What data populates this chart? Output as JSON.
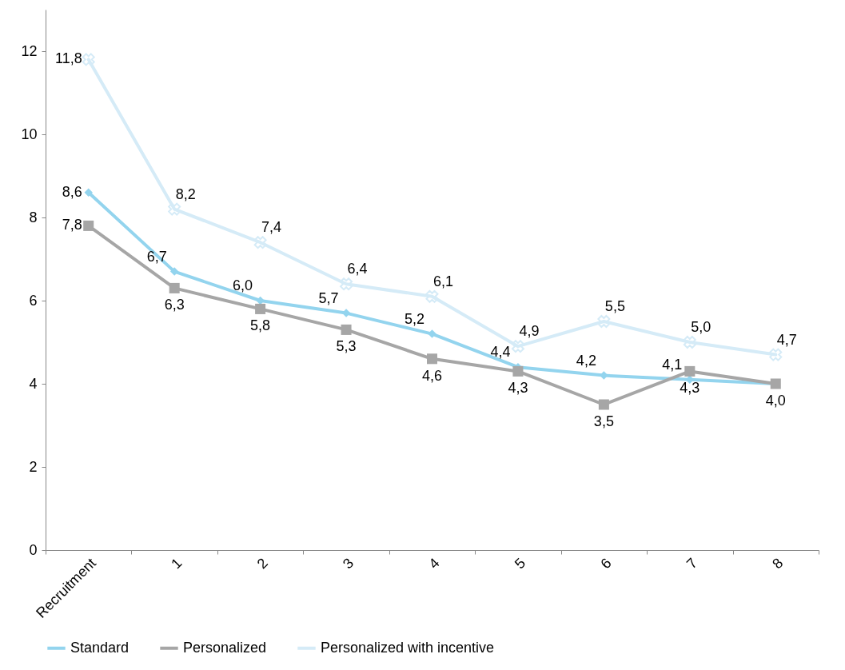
{
  "chart_data": {
    "type": "line",
    "categories": [
      "Recruitment",
      "1",
      "2",
      "3",
      "4",
      "5",
      "6",
      "7",
      "8"
    ],
    "series": [
      {
        "name": "Standard",
        "color": "#93d4ee",
        "marker": "diamond",
        "values": [
          8.6,
          6.7,
          6.0,
          5.7,
          5.2,
          4.4,
          4.2,
          4.1,
          4.0
        ],
        "value_labels": [
          "8,6",
          "6,7",
          "6,0",
          "5,7",
          "5,2",
          "4,4",
          "4,2",
          "4,1",
          null
        ]
      },
      {
        "name": "Personalized",
        "color": "#a6a6a6",
        "marker": "square",
        "values": [
          7.8,
          6.3,
          5.8,
          5.3,
          4.6,
          4.3,
          3.5,
          4.3,
          4.0
        ],
        "value_labels": [
          "7,8",
          "6,3",
          "5,8",
          "5,3",
          "4,6",
          "4,3",
          "3,5",
          "4,3",
          "4,0"
        ]
      },
      {
        "name": "Personalized with incentive",
        "color": "#d5ebf7",
        "marker": "cross",
        "values": [
          11.8,
          8.2,
          7.4,
          6.4,
          6.1,
          4.9,
          5.5,
          5.0,
          4.7
        ],
        "value_labels": [
          "11,8",
          "8,2",
          "7,4",
          "6,4",
          "6,1",
          "4,9",
          "5,5",
          "5,0",
          "4,7"
        ]
      }
    ],
    "ylim": [
      0,
      13
    ],
    "yticks": [
      0,
      2,
      4,
      6,
      8,
      10,
      12
    ],
    "grid": false,
    "legend": "bottom"
  }
}
